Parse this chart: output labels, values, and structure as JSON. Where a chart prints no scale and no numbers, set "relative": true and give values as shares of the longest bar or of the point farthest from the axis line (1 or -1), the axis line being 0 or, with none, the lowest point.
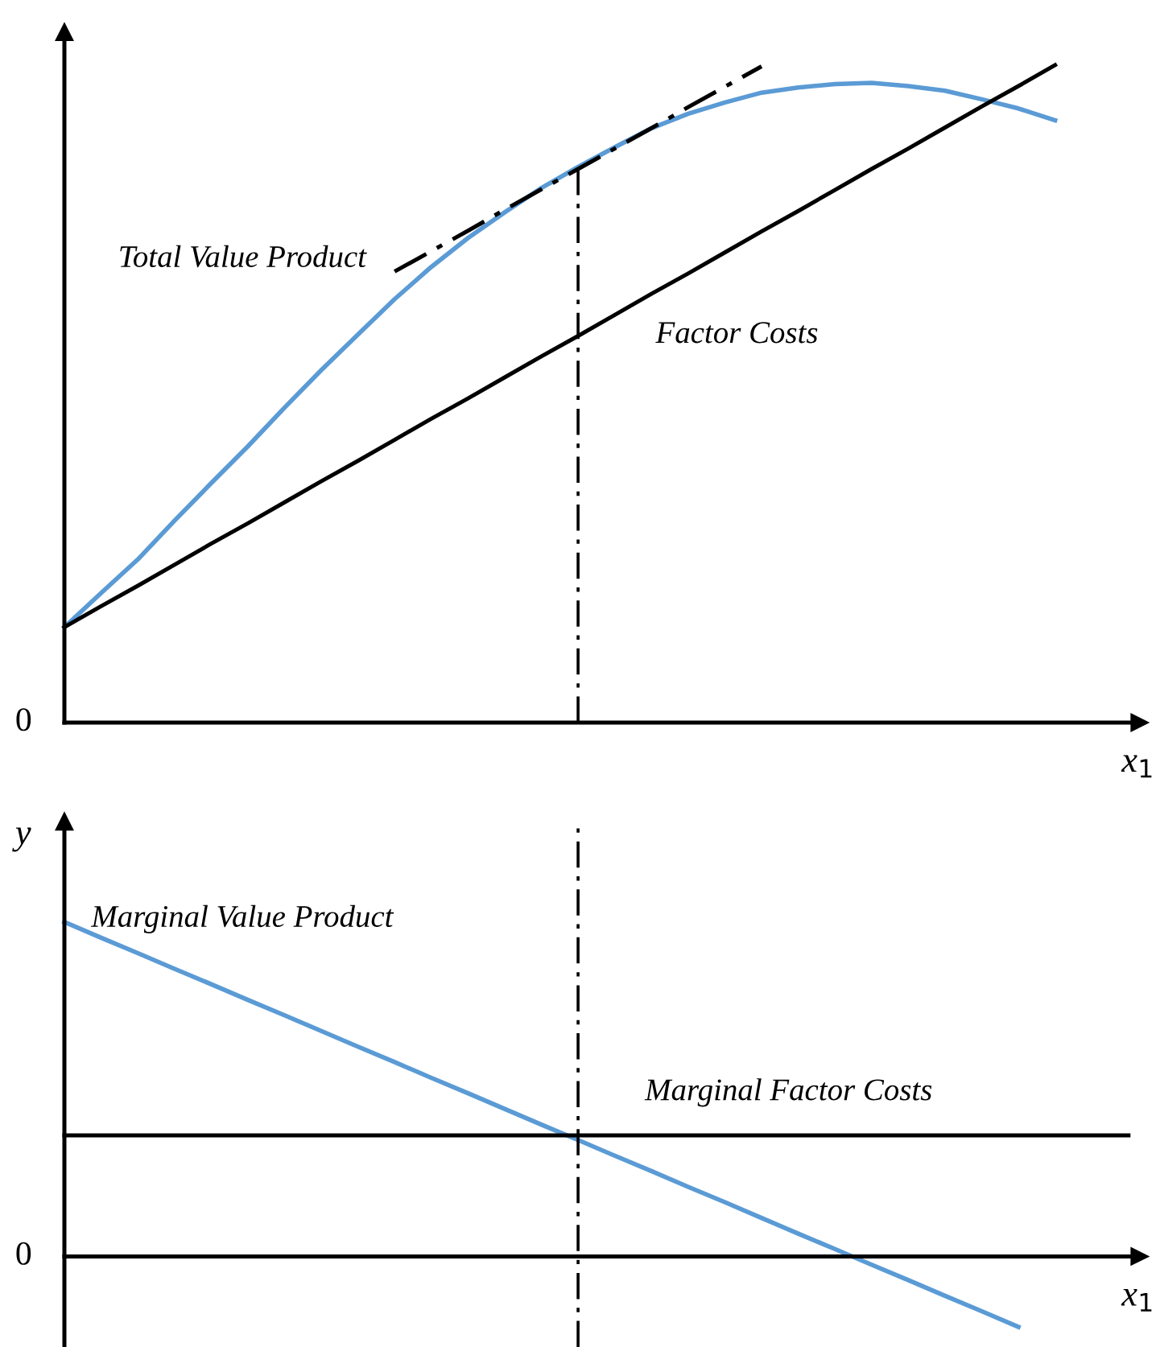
{
  "chart_data": [
    {
      "type": "line",
      "relative": true,
      "xlabel": "x$_{1}$",
      "tick_labels": false,
      "categories": [
        null,
        null,
        null,
        null,
        null,
        null,
        null,
        null,
        null,
        null,
        null,
        null,
        null,
        null,
        null,
        null,
        null,
        null,
        null,
        null,
        null,
        null,
        null,
        null,
        null,
        null,
        null,
        null,
        null,
        null
      ],
      "series": [
        {
          "name": "Total Value Product",
          "color": "#5b9bd5",
          "values": [
            0.145,
            0.197,
            0.248,
            0.307,
            0.364,
            0.42,
            0.479,
            0.536,
            0.59,
            0.644,
            0.693,
            0.737,
            0.776,
            0.813,
            0.845,
            0.875,
            0.904,
            0.926,
            0.943,
            0.958,
            0.966,
            0.971,
            0.973,
            0.968,
            0.961,
            0.948,
            0.934,
            0.916,
            null,
            null
          ]
        },
        {
          "name": "Factor Costs",
          "color": "#000000",
          "values": [
            0.145,
            0.177,
            0.208,
            0.24,
            0.272,
            0.303,
            0.335,
            0.367,
            0.398,
            0.43,
            0.462,
            0.493,
            0.525,
            0.557,
            0.588,
            0.62,
            0.652,
            0.683,
            0.715,
            0.747,
            0.778,
            0.81,
            0.842,
            0.873,
            0.905,
            0.937,
            0.968,
            1.0,
            null,
            null
          ]
        },
        {
          "color": "#000000",
          "line_style": "dashdot",
          "values": [
            null,
            null,
            null,
            null,
            null,
            null,
            null,
            null,
            null,
            0.686,
            0.717,
            0.748,
            0.78,
            0.811,
            0.842,
            0.873,
            0.904,
            0.936,
            0.967,
            0.998,
            null,
            null,
            null,
            null,
            null,
            null,
            null,
            null,
            null,
            null
          ]
        }
      ],
      "annotations": [
        "0"
      ]
    },
    {
      "type": "line",
      "relative": true,
      "xlabel": "x$_{1}$",
      "ylabel": "y",
      "tick_labels": false,
      "categories": [
        null,
        null,
        null,
        null,
        null,
        null,
        null,
        null,
        null,
        null,
        null,
        null,
        null,
        null,
        null,
        null,
        null,
        null,
        null,
        null,
        null,
        null,
        null,
        null,
        null,
        null,
        null,
        null,
        null,
        null
      ],
      "series": [
        {
          "name": "Marginal Value Product",
          "color": "#5b9bd5",
          "values": [
            1,
            0.953,
            0.907,
            0.86,
            0.814,
            0.767,
            0.721,
            0.674,
            0.627,
            0.581,
            0.534,
            0.488,
            0.441,
            0.394,
            0.348,
            0.301,
            0.255,
            0.208,
            0.162,
            0.115,
            0.068,
            0.022,
            -0.025,
            -0.071,
            -0.118,
            -0.164,
            -0.211,
            null,
            null,
            null
          ]
        },
        {
          "name": "Marginal Factor Costs",
          "color": "#000000",
          "values": [
            0.362,
            0.362,
            0.362,
            0.362,
            0.362,
            0.362,
            0.362,
            0.362,
            0.362,
            0.362,
            0.362,
            0.362,
            0.362,
            0.362,
            0.362,
            0.362,
            0.362,
            0.362,
            0.362,
            0.362,
            0.362,
            0.362,
            0.362,
            0.362,
            0.362,
            0.362,
            0.362,
            0.362,
            0.362,
            0.362
          ]
        }
      ],
      "annotations": [
        "0"
      ]
    }
  ]
}
